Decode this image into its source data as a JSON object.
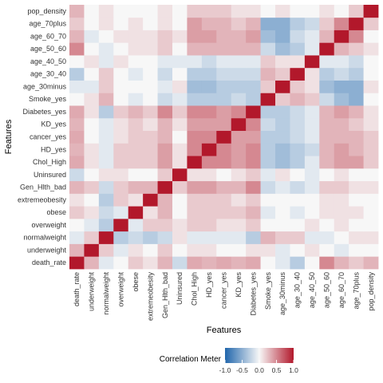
{
  "chart_data": {
    "type": "heatmap",
    "title": "",
    "xlabel": "Features",
    "ylabel": "Features",
    "features": [
      "death_rate",
      "underweight",
      "normalweight",
      "overweight",
      "obese",
      "extremeobesity",
      "Gen_Hlth_bad",
      "Uninsured",
      "Chol_High",
      "HD_yes",
      "cancer_yes",
      "KD_yes",
      "Diabetes_yes",
      "Smoke_yes",
      "age_30minus",
      "age_30_40",
      "age_40_50",
      "age_50_60",
      "age_60_70",
      "age_70plus",
      "pop_density"
    ],
    "matrix": [
      [
        1.0,
        0.3,
        -0.1,
        0.0,
        0.2,
        0.1,
        0.3,
        -0.2,
        0.35,
        0.3,
        0.35,
        0.3,
        0.35,
        0.0,
        -0.1,
        -0.3,
        0.0,
        0.5,
        0.3,
        0.2,
        0.3
      ],
      [
        0.3,
        1.0,
        0.2,
        -0.1,
        0.1,
        0.0,
        0.2,
        0.0,
        0.1,
        0.1,
        0.0,
        0.0,
        0.1,
        0.1,
        -0.1,
        0.0,
        0.1,
        0.0,
        -0.1,
        0.0,
        0.0
      ],
      [
        -0.1,
        0.2,
        1.0,
        -0.3,
        -0.2,
        -0.3,
        -0.2,
        0.1,
        -0.1,
        -0.1,
        -0.1,
        -0.1,
        -0.3,
        0.3,
        0.2,
        0.2,
        -0.1,
        -0.1,
        0.0,
        0.1,
        0.1
      ],
      [
        0.0,
        -0.1,
        -0.3,
        1.0,
        -0.1,
        0.2,
        0.2,
        0.1,
        0.2,
        0.2,
        0.1,
        0.1,
        0.2,
        0.0,
        0.0,
        0.0,
        0.1,
        0.0,
        0.1,
        0.0,
        0.0
      ],
      [
        0.2,
        0.1,
        -0.2,
        -0.1,
        1.0,
        0.1,
        0.3,
        0.0,
        0.2,
        0.2,
        0.2,
        0.2,
        0.3,
        -0.1,
        0.0,
        -0.1,
        0.0,
        0.1,
        0.1,
        0.1,
        0.0
      ],
      [
        0.1,
        0.0,
        -0.3,
        0.2,
        0.1,
        1.0,
        0.3,
        0.0,
        0.2,
        0.2,
        0.2,
        0.1,
        0.2,
        0.0,
        0.0,
        0.0,
        0.0,
        0.1,
        0.1,
        0.0,
        0.0
      ],
      [
        0.3,
        0.2,
        -0.2,
        0.2,
        0.3,
        0.3,
        1.0,
        0.2,
        0.4,
        0.4,
        0.3,
        0.3,
        0.5,
        -0.2,
        -0.1,
        -0.2,
        -0.1,
        0.2,
        0.2,
        0.1,
        0.1
      ],
      [
        -0.2,
        0.0,
        0.1,
        0.1,
        0.0,
        0.0,
        0.2,
        1.0,
        0.1,
        0.1,
        0.0,
        0.1,
        0.2,
        -0.1,
        0.1,
        0.0,
        -0.1,
        0.0,
        0.1,
        0.0,
        0.0
      ],
      [
        0.35,
        0.1,
        -0.1,
        0.2,
        0.2,
        0.2,
        0.4,
        0.1,
        1.0,
        0.5,
        0.5,
        0.4,
        0.5,
        -0.3,
        -0.4,
        -0.3,
        -0.1,
        0.3,
        0.4,
        0.4,
        0.2
      ],
      [
        0.3,
        0.1,
        -0.1,
        0.2,
        0.2,
        0.2,
        0.4,
        0.1,
        0.5,
        1.0,
        0.5,
        0.4,
        0.5,
        -0.3,
        -0.4,
        -0.3,
        -0.2,
        0.3,
        0.4,
        0.3,
        0.2
      ],
      [
        0.35,
        0.0,
        -0.1,
        0.1,
        0.2,
        0.2,
        0.3,
        0.0,
        0.5,
        0.5,
        1.0,
        0.4,
        0.4,
        -0.3,
        -0.3,
        -0.2,
        -0.1,
        0.3,
        0.3,
        0.3,
        0.2
      ],
      [
        0.3,
        0.0,
        -0.1,
        0.1,
        0.2,
        0.1,
        0.3,
        0.1,
        0.4,
        0.4,
        0.4,
        1.0,
        0.5,
        -0.2,
        -0.3,
        -0.2,
        -0.1,
        0.3,
        0.3,
        0.2,
        0.1
      ],
      [
        0.35,
        0.1,
        -0.3,
        0.2,
        0.3,
        0.2,
        0.5,
        0.2,
        0.5,
        0.5,
        0.4,
        0.5,
        1.0,
        -0.3,
        -0.3,
        -0.2,
        -0.1,
        0.3,
        0.4,
        0.3,
        0.1
      ],
      [
        0.0,
        0.1,
        0.3,
        0.0,
        -0.1,
        0.0,
        -0.2,
        -0.1,
        -0.3,
        -0.3,
        -0.3,
        -0.2,
        -0.3,
        1.0,
        0.2,
        0.3,
        0.2,
        -0.2,
        -0.4,
        -0.5,
        0.0
      ],
      [
        -0.1,
        -0.1,
        0.2,
        0.0,
        0.0,
        0.0,
        -0.1,
        0.1,
        -0.4,
        -0.4,
        -0.3,
        -0.3,
        -0.3,
        0.2,
        1.0,
        0.2,
        0.1,
        -0.4,
        -0.5,
        -0.5,
        0.1
      ],
      [
        -0.3,
        0.0,
        0.2,
        0.0,
        -0.1,
        0.0,
        -0.2,
        0.0,
        -0.3,
        -0.3,
        -0.2,
        -0.2,
        -0.2,
        0.3,
        0.2,
        1.0,
        0.1,
        -0.3,
        -0.2,
        -0.3,
        0.0
      ],
      [
        0.0,
        0.1,
        -0.1,
        0.1,
        0.0,
        0.0,
        -0.1,
        -0.1,
        -0.1,
        -0.2,
        -0.1,
        -0.1,
        -0.1,
        0.2,
        0.1,
        0.1,
        1.0,
        -0.1,
        -0.1,
        -0.2,
        0.0
      ],
      [
        0.5,
        0.0,
        -0.1,
        0.0,
        0.1,
        0.1,
        0.2,
        0.0,
        0.3,
        0.3,
        0.3,
        0.3,
        0.3,
        -0.2,
        -0.4,
        -0.3,
        -0.1,
        1.0,
        0.3,
        0.2,
        0.1
      ],
      [
        0.3,
        -0.1,
        0.0,
        0.1,
        0.1,
        0.1,
        0.2,
        0.1,
        0.4,
        0.4,
        0.3,
        0.3,
        0.4,
        -0.4,
        -0.5,
        -0.2,
        -0.1,
        0.3,
        1.0,
        0.5,
        0.0
      ],
      [
        0.2,
        0.0,
        0.1,
        0.0,
        0.1,
        0.0,
        0.1,
        0.0,
        0.4,
        0.3,
        0.3,
        0.2,
        0.3,
        -0.5,
        -0.5,
        -0.3,
        -0.2,
        0.2,
        0.5,
        1.0,
        0.2
      ],
      [
        0.3,
        0.0,
        0.1,
        0.0,
        0.0,
        0.0,
        0.1,
        0.0,
        0.2,
        0.2,
        0.2,
        0.1,
        0.1,
        0.0,
        0.1,
        0.0,
        0.0,
        0.1,
        0.0,
        0.2,
        1.0
      ]
    ],
    "color_scale": {
      "low": "#2166ac",
      "mid": "#f7f7f7",
      "high": "#b2182b",
      "range": [
        -1,
        1
      ]
    },
    "legend": {
      "title": "Correlation Meter",
      "ticks": [
        "-1.0",
        "-0.5",
        "0.0",
        "0.5",
        "1.0"
      ],
      "tick_values": [
        -1,
        -0.5,
        0,
        0.5,
        1
      ],
      "placement": "bottom"
    },
    "grid": false
  }
}
